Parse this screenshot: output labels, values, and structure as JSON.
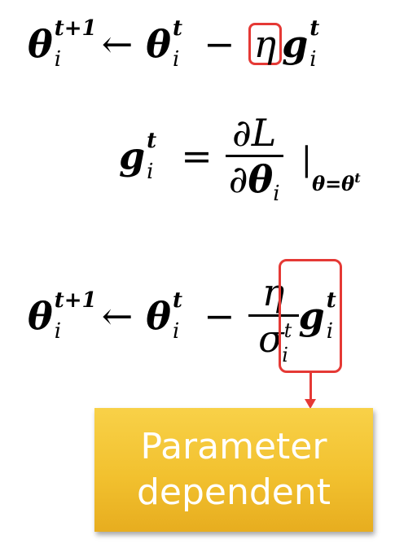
{
  "equation_1": {
    "lhs_symbol": "θ",
    "lhs_sup": "t+1",
    "lhs_sub": "i",
    "arrow": "←",
    "theta_symbol": "θ",
    "theta_sup": "t",
    "theta_sub": "i",
    "minus": "−",
    "eta": "η",
    "g_symbol": "g",
    "g_sup": "t",
    "g_sub": "i"
  },
  "equation_2": {
    "g_symbol": "g",
    "g_sup": "t",
    "g_sub": "i",
    "equals": "=",
    "num": "∂L",
    "den_partial": "∂",
    "den_theta": "θ",
    "den_sub": "i",
    "eval_bar": "|",
    "eval_sub": "θ=θ",
    "eval_sup": "t"
  },
  "equation_3": {
    "lhs_symbol": "θ",
    "lhs_sup": "t+1",
    "lhs_sub": "i",
    "arrow": "←",
    "theta_symbol": "θ",
    "theta_sup": "t",
    "theta_sub": "i",
    "minus": "−",
    "frac_num": "η",
    "frac_den": "σ",
    "frac_den_sup": "t",
    "frac_den_sub": "i",
    "g_symbol": "g",
    "g_sup": "t",
    "g_sub": "i"
  },
  "callout": {
    "text": "Parameter\ndependent"
  },
  "colors": {
    "highlight": "#e53935",
    "callout_top": "#f8d148",
    "callout_bottom": "#e7ad1f",
    "callout_text": "#ffffff"
  }
}
